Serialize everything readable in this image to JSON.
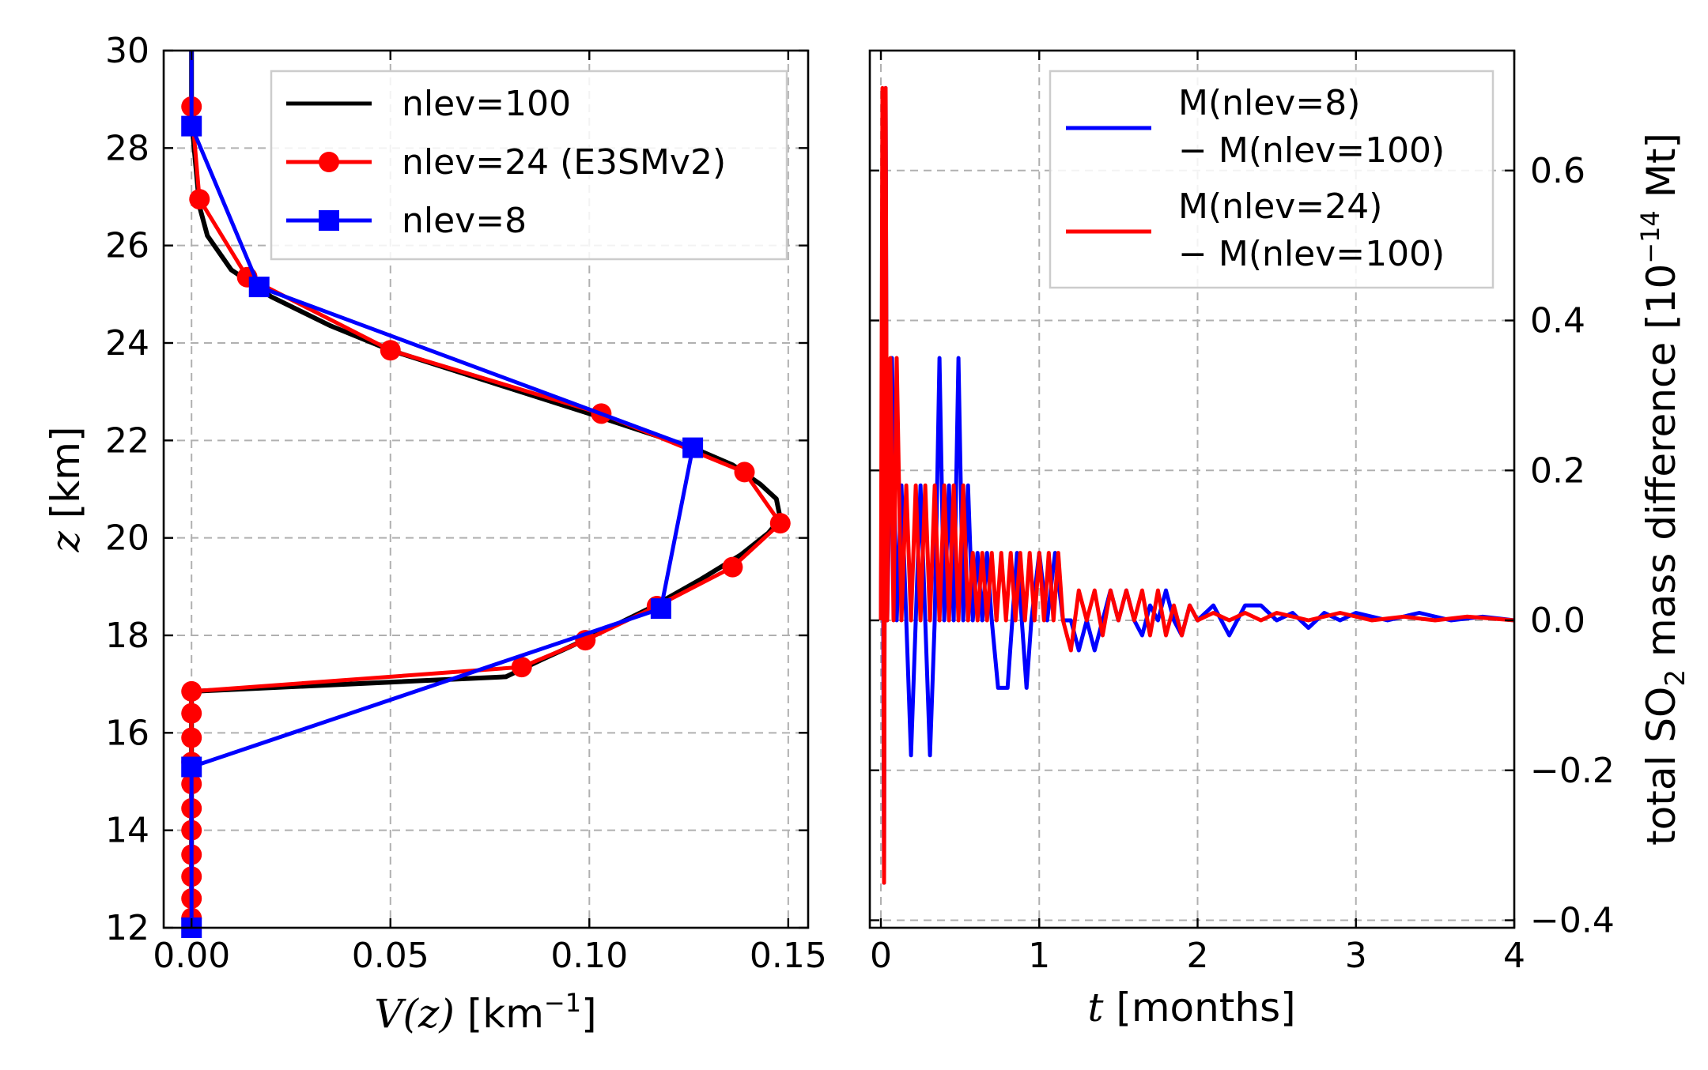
{
  "chart_data": [
    {
      "type": "line",
      "title": "",
      "xlabel_var": "V(z)",
      "xlabel_unit": " [km",
      "xlabel_exp": "−1",
      "xlabel_close": "]",
      "ylabel_var": "z",
      "ylabel_unit": " [km]",
      "xlim": [
        -0.007,
        0.155
      ],
      "ylim": [
        12,
        30
      ],
      "xticks": [
        0.0,
        0.05,
        0.1,
        0.15
      ],
      "xtick_labels": [
        "0.00",
        "0.05",
        "0.10",
        "0.15"
      ],
      "yticks": [
        12,
        14,
        16,
        18,
        20,
        22,
        24,
        26,
        28,
        30
      ],
      "ytick_labels": [
        "12",
        "14",
        "16",
        "18",
        "20",
        "22",
        "24",
        "26",
        "28",
        "30"
      ],
      "grid": true,
      "legend_position": "top-right",
      "series": [
        {
          "name": "nlev=100",
          "color": "#000000",
          "marker": "none",
          "points": [
            [
              0.0,
              12.0
            ],
            [
              0.0,
              16.85
            ],
            [
              0.079,
              17.15
            ],
            [
              0.088,
              17.5
            ],
            [
              0.1,
              17.95
            ],
            [
              0.115,
              18.55
            ],
            [
              0.128,
              19.15
            ],
            [
              0.138,
              19.65
            ],
            [
              0.145,
              20.1
            ],
            [
              0.148,
              20.4
            ],
            [
              0.147,
              20.8
            ],
            [
              0.143,
              21.1
            ],
            [
              0.136,
              21.5
            ],
            [
              0.126,
              21.85
            ],
            [
              0.1,
              22.55
            ],
            [
              0.075,
              23.2
            ],
            [
              0.05,
              23.85
            ],
            [
              0.035,
              24.35
            ],
            [
              0.02,
              24.95
            ],
            [
              0.01,
              25.5
            ],
            [
              0.004,
              26.2
            ],
            [
              0.002,
              26.8
            ],
            [
              0.001,
              27.7
            ],
            [
              0.0,
              28.6
            ],
            [
              0.0,
              30.0
            ]
          ]
        },
        {
          "name": "nlev=24 (E3SMv2)",
          "color": "#ff0000",
          "marker": "circle",
          "points": [
            [
              0.0,
              12.2
            ],
            [
              0.0,
              12.6
            ],
            [
              0.0,
              13.05
            ],
            [
              0.0,
              13.5
            ],
            [
              0.0,
              14.0
            ],
            [
              0.0,
              14.45
            ],
            [
              0.0,
              14.95
            ],
            [
              0.0,
              15.4
            ],
            [
              0.0,
              15.9
            ],
            [
              0.0,
              16.4
            ],
            [
              0.0,
              16.85
            ],
            [
              0.083,
              17.35
            ],
            [
              0.099,
              17.9
            ],
            [
              0.117,
              18.6
            ],
            [
              0.136,
              19.4
            ],
            [
              0.148,
              20.3
            ],
            [
              0.139,
              21.35
            ],
            [
              0.103,
              22.55
            ],
            [
              0.05,
              23.85
            ],
            [
              0.014,
              25.35
            ],
            [
              0.002,
              26.95
            ],
            [
              0.0,
              28.85
            ]
          ]
        },
        {
          "name": "nlev=8",
          "color": "#0000ff",
          "marker": "square",
          "points": [
            [
              0.0,
              12.0
            ],
            [
              0.0,
              15.3
            ],
            [
              0.118,
              18.55
            ],
            [
              0.126,
              21.85
            ],
            [
              0.017,
              25.15
            ],
            [
              0.0,
              28.45
            ],
            [
              0.0,
              30.0
            ]
          ]
        }
      ]
    },
    {
      "type": "line",
      "title": "",
      "xlabel_var": "t",
      "xlabel_unit": " [months]",
      "ylabel_text": "total SO",
      "ylabel_sub": "2",
      "ylabel_mid": " mass difference [10",
      "ylabel_exp": "−14",
      "ylabel_end": " Mt]",
      "xlim": [
        -0.07,
        4.0
      ],
      "ylim": [
        -0.41,
        0.76
      ],
      "xticks": [
        0,
        1,
        2,
        3,
        4
      ],
      "xtick_labels": [
        "0",
        "1",
        "2",
        "3",
        "4"
      ],
      "yticks": [
        -0.4,
        -0.2,
        0.0,
        0.2,
        0.4,
        0.6
      ],
      "ytick_labels": [
        "−0.4",
        "−0.2",
        "0.0",
        "0.2",
        "0.4",
        "0.6"
      ],
      "grid": true,
      "y_axis_side": "right",
      "legend_position": "top-right",
      "series": [
        {
          "name_line1": "M(nlev=8)",
          "name_line2": "− M(nlev=100)",
          "color": "#0000ff",
          "points": [
            [
              0.0,
              0.0
            ],
            [
              0.01,
              0.35
            ],
            [
              0.02,
              -0.35
            ],
            [
              0.03,
              0.71
            ],
            [
              0.04,
              0.0
            ],
            [
              0.07,
              0.35
            ],
            [
              0.1,
              0.0
            ],
            [
              0.13,
              0.18
            ],
            [
              0.16,
              0.0
            ],
            [
              0.19,
              -0.18
            ],
            [
              0.22,
              0.0
            ],
            [
              0.25,
              0.18
            ],
            [
              0.28,
              0.0
            ],
            [
              0.31,
              -0.18
            ],
            [
              0.34,
              0.0
            ],
            [
              0.37,
              0.35
            ],
            [
              0.4,
              0.0
            ],
            [
              0.43,
              0.18
            ],
            [
              0.46,
              0.0
            ],
            [
              0.49,
              0.35
            ],
            [
              0.52,
              0.0
            ],
            [
              0.55,
              0.18
            ],
            [
              0.58,
              0.0
            ],
            [
              0.61,
              0.09
            ],
            [
              0.64,
              0.0
            ],
            [
              0.67,
              0.09
            ],
            [
              0.7,
              0.0
            ],
            [
              0.74,
              -0.09
            ],
            [
              0.8,
              -0.09
            ],
            [
              0.83,
              0.0
            ],
            [
              0.86,
              0.09
            ],
            [
              0.89,
              0.0
            ],
            [
              0.92,
              -0.09
            ],
            [
              0.95,
              0.0
            ],
            [
              1.0,
              0.09
            ],
            [
              1.05,
              0.0
            ],
            [
              1.1,
              0.09
            ],
            [
              1.15,
              0.0
            ],
            [
              1.2,
              0.0
            ],
            [
              1.25,
              -0.04
            ],
            [
              1.3,
              0.0
            ],
            [
              1.35,
              -0.04
            ],
            [
              1.4,
              0.0
            ],
            [
              1.45,
              0.04
            ],
            [
              1.5,
              0.0
            ],
            [
              1.55,
              0.04
            ],
            [
              1.6,
              0.0
            ],
            [
              1.65,
              -0.02
            ],
            [
              1.7,
              0.02
            ],
            [
              1.75,
              0.0
            ],
            [
              1.8,
              0.04
            ],
            [
              1.85,
              0.0
            ],
            [
              1.9,
              -0.02
            ],
            [
              1.95,
              0.02
            ],
            [
              2.0,
              0.0
            ],
            [
              2.1,
              0.02
            ],
            [
              2.2,
              -0.02
            ],
            [
              2.3,
              0.02
            ],
            [
              2.4,
              0.02
            ],
            [
              2.5,
              0.0
            ],
            [
              2.6,
              0.01
            ],
            [
              2.7,
              -0.01
            ],
            [
              2.8,
              0.01
            ],
            [
              2.9,
              0.0
            ],
            [
              3.0,
              0.01
            ],
            [
              3.2,
              0.0
            ],
            [
              3.4,
              0.01
            ],
            [
              3.6,
              0.0
            ],
            [
              3.8,
              0.005
            ],
            [
              4.0,
              0.0
            ]
          ]
        },
        {
          "name_line1": "M(nlev=24)",
          "name_line2": "− M(nlev=100)",
          "color": "#ff0000",
          "points": [
            [
              0.0,
              0.0
            ],
            [
              0.01,
              0.71
            ],
            [
              0.02,
              -0.35
            ],
            [
              0.03,
              0.71
            ],
            [
              0.04,
              0.0
            ],
            [
              0.06,
              0.35
            ],
            [
              0.08,
              0.0
            ],
            [
              0.1,
              0.35
            ],
            [
              0.13,
              0.0
            ],
            [
              0.16,
              0.18
            ],
            [
              0.19,
              0.0
            ],
            [
              0.22,
              0.18
            ],
            [
              0.25,
              0.0
            ],
            [
              0.28,
              0.18
            ],
            [
              0.31,
              0.0
            ],
            [
              0.34,
              0.18
            ],
            [
              0.37,
              0.0
            ],
            [
              0.4,
              0.18
            ],
            [
              0.43,
              0.0
            ],
            [
              0.46,
              0.18
            ],
            [
              0.49,
              0.0
            ],
            [
              0.52,
              0.18
            ],
            [
              0.55,
              0.0
            ],
            [
              0.58,
              0.09
            ],
            [
              0.61,
              0.0
            ],
            [
              0.64,
              0.09
            ],
            [
              0.67,
              0.0
            ],
            [
              0.7,
              0.09
            ],
            [
              0.73,
              0.0
            ],
            [
              0.76,
              0.09
            ],
            [
              0.79,
              0.0
            ],
            [
              0.82,
              0.09
            ],
            [
              0.85,
              0.0
            ],
            [
              0.88,
              0.09
            ],
            [
              0.91,
              0.0
            ],
            [
              0.94,
              0.09
            ],
            [
              0.97,
              0.0
            ],
            [
              1.0,
              0.09
            ],
            [
              1.03,
              0.0
            ],
            [
              1.06,
              0.09
            ],
            [
              1.09,
              0.0
            ],
            [
              1.12,
              0.09
            ],
            [
              1.15,
              0.0
            ],
            [
              1.2,
              -0.04
            ],
            [
              1.25,
              0.04
            ],
            [
              1.3,
              0.0
            ],
            [
              1.35,
              0.04
            ],
            [
              1.4,
              -0.02
            ],
            [
              1.45,
              0.04
            ],
            [
              1.5,
              0.0
            ],
            [
              1.55,
              0.04
            ],
            [
              1.6,
              0.0
            ],
            [
              1.65,
              0.04
            ],
            [
              1.7,
              -0.02
            ],
            [
              1.75,
              0.04
            ],
            [
              1.8,
              -0.02
            ],
            [
              1.85,
              0.02
            ],
            [
              1.9,
              -0.02
            ],
            [
              1.95,
              0.02
            ],
            [
              2.0,
              0.0
            ],
            [
              2.1,
              0.01
            ],
            [
              2.2,
              0.0
            ],
            [
              2.3,
              0.01
            ],
            [
              2.4,
              0.0
            ],
            [
              2.5,
              0.01
            ],
            [
              2.7,
              0.0
            ],
            [
              2.9,
              0.01
            ],
            [
              3.1,
              0.0
            ],
            [
              3.3,
              0.005
            ],
            [
              3.5,
              0.0
            ],
            [
              3.7,
              0.005
            ],
            [
              4.0,
              0.0
            ]
          ]
        }
      ]
    }
  ]
}
